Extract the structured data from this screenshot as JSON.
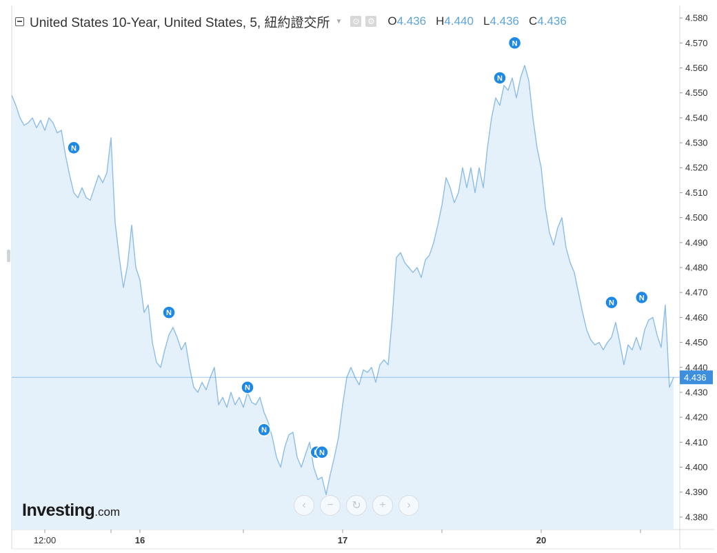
{
  "legend": {
    "symbol": "United States 10-Year, United States, 5, 紐約證交所",
    "caret_icon": "triangle-down-icon",
    "buttons": [
      {
        "name": "indicator-settings-icon",
        "glyph": "⊙"
      },
      {
        "name": "gear-icon",
        "glyph": "⚙"
      }
    ],
    "ohlc": [
      {
        "key": "O",
        "value": "4.436"
      },
      {
        "key": "H",
        "value": "4.440"
      },
      {
        "key": "L",
        "value": "4.436"
      },
      {
        "key": "C",
        "value": "4.436"
      }
    ]
  },
  "brand": {
    "name": "Investing",
    "suffix": ".com"
  },
  "nav_buttons": [
    {
      "name": "scroll-left-button",
      "glyph": "‹"
    },
    {
      "name": "zoom-out-button",
      "glyph": "−"
    },
    {
      "name": "reset-button",
      "glyph": "↻"
    },
    {
      "name": "zoom-in-button",
      "glyph": "+"
    },
    {
      "name": "scroll-right-button",
      "glyph": "›"
    }
  ],
  "colors": {
    "line": "#8dbde6",
    "fill": "#e4f0fa",
    "price_marker": "#3d8fde",
    "news_marker": "#1e88e5",
    "axis_text": "#333333",
    "grid": "#d8d8d8"
  },
  "chart_data": {
    "type": "area",
    "title": "United States 10-Year",
    "ylim": [
      4.375,
      4.585
    ],
    "y_ticks": [
      "4.580",
      "4.570",
      "4.560",
      "4.550",
      "4.540",
      "4.530",
      "4.520",
      "4.510",
      "4.500",
      "4.490",
      "4.480",
      "4.470",
      "4.460",
      "4.450",
      "4.440",
      "4.430",
      "4.420",
      "4.410",
      "4.400",
      "4.390",
      "4.380"
    ],
    "x_ticks": [
      {
        "label": "12:00",
        "x": 8
      },
      {
        "label": "16",
        "x": 31
      },
      {
        "label": "17",
        "x": 80
      },
      {
        "label": "20",
        "x": 128
      }
    ],
    "x_minor_ticks": [
      24,
      56,
      104,
      152
    ],
    "x_range": [
      0,
      160
    ],
    "last_value": "4.436",
    "last_value_numeric": 4.436,
    "series": [
      {
        "points": [
          [
            0,
            4.549
          ],
          [
            1,
            4.545
          ],
          [
            2,
            4.54
          ],
          [
            3,
            4.537
          ],
          [
            4,
            4.538
          ],
          [
            5,
            4.54
          ],
          [
            6,
            4.536
          ],
          [
            7,
            4.539
          ],
          [
            8,
            4.535
          ],
          [
            9,
            4.54
          ],
          [
            10,
            4.538
          ],
          [
            11,
            4.534
          ],
          [
            12,
            4.535
          ],
          [
            13,
            4.525
          ],
          [
            14,
            4.517
          ],
          [
            15,
            4.51
          ],
          [
            16,
            4.508
          ],
          [
            17,
            4.512
          ],
          [
            18,
            4.508
          ],
          [
            19,
            4.507
          ],
          [
            20,
            4.512
          ],
          [
            21,
            4.517
          ],
          [
            22,
            4.514
          ],
          [
            23,
            4.518
          ],
          [
            24,
            4.532
          ],
          [
            25,
            4.498
          ],
          [
            26,
            4.484
          ],
          [
            27,
            4.472
          ],
          [
            28,
            4.481
          ],
          [
            29,
            4.497
          ],
          [
            30,
            4.48
          ],
          [
            31,
            4.475
          ],
          [
            32,
            4.462
          ],
          [
            33,
            4.465
          ],
          [
            34,
            4.45
          ],
          [
            35,
            4.442
          ],
          [
            36,
            4.44
          ],
          [
            37,
            4.447
          ],
          [
            38,
            4.453
          ],
          [
            39,
            4.456
          ],
          [
            40,
            4.452
          ],
          [
            41,
            4.447
          ],
          [
            42,
            4.45
          ],
          [
            43,
            4.44
          ],
          [
            44,
            4.432
          ],
          [
            45,
            4.43
          ],
          [
            46,
            4.434
          ],
          [
            47,
            4.431
          ],
          [
            48,
            4.436
          ],
          [
            49,
            4.44
          ],
          [
            50,
            4.425
          ],
          [
            51,
            4.428
          ],
          [
            52,
            4.424
          ],
          [
            53,
            4.43
          ],
          [
            54,
            4.425
          ],
          [
            55,
            4.428
          ],
          [
            56,
            4.424
          ],
          [
            57,
            4.43
          ],
          [
            58,
            4.426
          ],
          [
            59,
            4.425
          ],
          [
            60,
            4.428
          ],
          [
            61,
            4.422
          ],
          [
            62,
            4.418
          ],
          [
            63,
            4.412
          ],
          [
            64,
            4.404
          ],
          [
            65,
            4.4
          ],
          [
            66,
            4.408
          ],
          [
            67,
            4.413
          ],
          [
            68,
            4.414
          ],
          [
            69,
            4.404
          ],
          [
            70,
            4.4
          ],
          [
            71,
            4.405
          ],
          [
            72,
            4.41
          ],
          [
            73,
            4.4
          ],
          [
            74,
            4.395
          ],
          [
            75,
            4.396
          ],
          [
            76,
            4.389
          ],
          [
            77,
            4.397
          ],
          [
            78,
            4.404
          ],
          [
            79,
            4.412
          ],
          [
            80,
            4.425
          ],
          [
            81,
            4.436
          ],
          [
            82,
            4.44
          ],
          [
            83,
            4.436
          ],
          [
            84,
            4.433
          ],
          [
            85,
            4.439
          ],
          [
            86,
            4.438
          ],
          [
            87,
            4.44
          ],
          [
            88,
            4.434
          ],
          [
            89,
            4.441
          ],
          [
            90,
            4.443
          ],
          [
            91,
            4.441
          ],
          [
            92,
            4.46
          ],
          [
            93,
            4.484
          ],
          [
            94,
            4.486
          ],
          [
            95,
            4.482
          ],
          [
            96,
            4.48
          ],
          [
            97,
            4.478
          ],
          [
            98,
            4.48
          ],
          [
            99,
            4.476
          ],
          [
            100,
            4.483
          ],
          [
            101,
            4.485
          ],
          [
            102,
            4.49
          ],
          [
            103,
            4.497
          ],
          [
            104,
            4.505
          ],
          [
            105,
            4.516
          ],
          [
            106,
            4.512
          ],
          [
            107,
            4.506
          ],
          [
            108,
            4.51
          ],
          [
            109,
            4.52
          ],
          [
            110,
            4.512
          ],
          [
            111,
            4.52
          ],
          [
            112,
            4.51
          ],
          [
            113,
            4.52
          ],
          [
            114,
            4.512
          ],
          [
            115,
            4.528
          ],
          [
            116,
            4.54
          ],
          [
            117,
            4.548
          ],
          [
            118,
            4.545
          ],
          [
            119,
            4.553
          ],
          [
            120,
            4.551
          ],
          [
            121,
            4.556
          ],
          [
            122,
            4.548
          ],
          [
            123,
            4.556
          ],
          [
            124,
            4.561
          ],
          [
            125,
            4.555
          ],
          [
            126,
            4.54
          ],
          [
            127,
            4.528
          ],
          [
            128,
            4.52
          ],
          [
            129,
            4.504
          ],
          [
            130,
            4.494
          ],
          [
            131,
            4.489
          ],
          [
            132,
            4.496
          ],
          [
            133,
            4.5
          ],
          [
            134,
            4.488
          ],
          [
            135,
            4.482
          ],
          [
            136,
            4.478
          ],
          [
            137,
            4.47
          ],
          [
            138,
            4.462
          ],
          [
            139,
            4.455
          ],
          [
            140,
            4.451
          ],
          [
            141,
            4.449
          ],
          [
            142,
            4.45
          ],
          [
            143,
            4.447
          ],
          [
            144,
            4.45
          ],
          [
            145,
            4.452
          ],
          [
            146,
            4.458
          ],
          [
            147,
            4.45
          ],
          [
            148,
            4.441
          ],
          [
            149,
            4.449
          ],
          [
            150,
            4.447
          ],
          [
            151,
            4.452
          ],
          [
            152,
            4.447
          ],
          [
            153,
            4.455
          ],
          [
            154,
            4.459
          ],
          [
            155,
            4.46
          ],
          [
            156,
            4.453
          ],
          [
            157,
            4.448
          ],
          [
            158,
            4.465
          ],
          [
            159,
            4.432
          ],
          [
            160,
            4.436
          ]
        ]
      }
    ],
    "news_markers": [
      {
        "label": "N",
        "x": 15,
        "value": 4.528
      },
      {
        "label": "N",
        "x": 38,
        "value": 4.462
      },
      {
        "label": "N",
        "x": 57,
        "value": 4.432
      },
      {
        "label": "N",
        "x": 61,
        "value": 4.415
      },
      {
        "label": "N",
        "x": 73.7,
        "value": 4.406
      },
      {
        "label": "N",
        "x": 75,
        "value": 4.406
      },
      {
        "label": "N",
        "x": 118,
        "value": 4.556
      },
      {
        "label": "N",
        "x": 121.6,
        "value": 4.57
      },
      {
        "label": "N",
        "x": 145,
        "value": 4.466
      },
      {
        "label": "N",
        "x": 152.3,
        "value": 4.468
      }
    ]
  }
}
